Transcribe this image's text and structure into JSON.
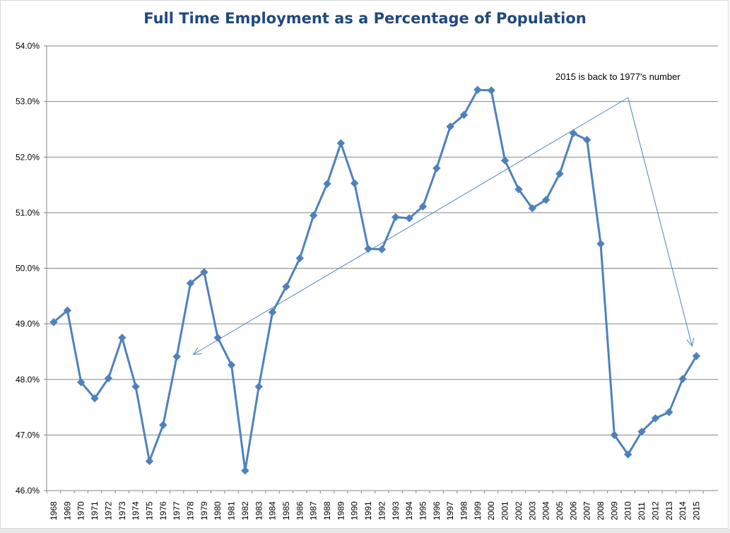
{
  "colors": {
    "title": "#1f497d",
    "series": "#4f81bd",
    "annotation": "#4f81bd",
    "grid": "#868686"
  },
  "chart_data": {
    "type": "line",
    "title": "Full Time Employment as a Percentage of Population",
    "xlabel": "",
    "ylabel": "",
    "ylim": [
      46.0,
      54.0
    ],
    "y_ticks": [
      "46.0%",
      "47.0%",
      "48.0%",
      "49.0%",
      "50.0%",
      "51.0%",
      "52.0%",
      "53.0%",
      "54.0%"
    ],
    "y_tick_values": [
      46,
      47,
      48,
      49,
      50,
      51,
      52,
      53,
      54
    ],
    "grid": true,
    "legend": "none",
    "marker": "diamond",
    "categories": [
      "1968",
      "1969",
      "1970",
      "1971",
      "1972",
      "1973",
      "1974",
      "1975",
      "1976",
      "1977",
      "1978",
      "1979",
      "1980",
      "1981",
      "1982",
      "1983",
      "1984",
      "1985",
      "1986",
      "1987",
      "1988",
      "1989",
      "1990",
      "1991",
      "1992",
      "1993",
      "1994",
      "1995",
      "1996",
      "1997",
      "1998",
      "1999",
      "2000",
      "2001",
      "2002",
      "2003",
      "2004",
      "2005",
      "2006",
      "2007",
      "2008",
      "2009",
      "2010",
      "2011",
      "2012",
      "2013",
      "2014",
      "2015"
    ],
    "series": [
      {
        "values": [
          49.03,
          49.24,
          47.95,
          47.66,
          48.02,
          48.75,
          47.87,
          46.53,
          47.18,
          48.41,
          49.73,
          49.93,
          48.75,
          48.26,
          46.36,
          47.87,
          49.21,
          49.67,
          50.18,
          50.95,
          51.52,
          52.25,
          51.53,
          50.35,
          50.34,
          50.92,
          50.9,
          51.11,
          51.8,
          52.55,
          52.76,
          53.21,
          53.2,
          51.94,
          51.42,
          51.08,
          51.23,
          51.7,
          52.43,
          52.31,
          50.44,
          47.0,
          46.65,
          47.06,
          47.3,
          47.41,
          48.01,
          48.42
        ]
      }
    ],
    "annotation": {
      "text": "2015 is back to 1977's number",
      "pivot": {
        "x": "2010",
        "y": 53.07
      },
      "arrow_to_1": {
        "x": "1978",
        "y": 48.45
      },
      "arrow_to_2": {
        "x": "2015",
        "y": 48.6
      }
    }
  }
}
